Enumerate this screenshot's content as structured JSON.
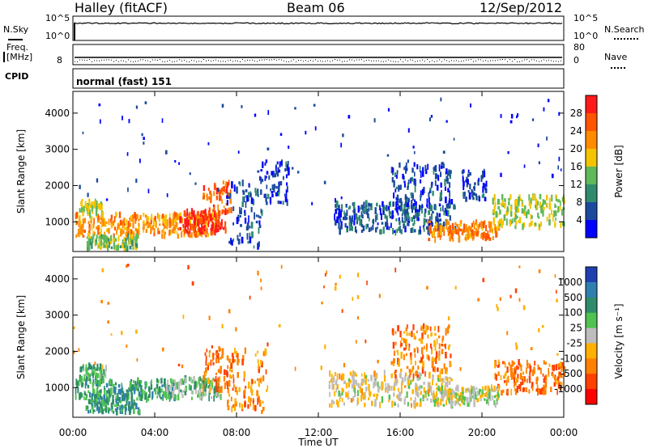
{
  "header": {
    "station": "Halley (fitACF)",
    "beam": "Beam 06",
    "date": "12/Sep/2012"
  },
  "noise_panel": {
    "left_label": "N.Sky",
    "right_label": "N.Search",
    "ticks_left": [
      "10^5",
      "10^0"
    ],
    "ticks_right": [
      "10^5",
      "10^0"
    ]
  },
  "freq_panel": {
    "left_label_line1": "Freq.",
    "left_label_line2": "[MHz]",
    "left_tick": "8",
    "right_label": "Nave",
    "right_ticks": [
      "80",
      "0"
    ]
  },
  "cpid": {
    "label": "CPID",
    "value": "normal (fast) 151"
  },
  "chart_data": [
    {
      "type": "heatmap",
      "name": "power",
      "ylabel": "Slant Range [km]",
      "yticks": [
        "4000",
        "3000",
        "2000",
        "1000"
      ],
      "ylim": [
        180,
        4600
      ],
      "xlim": [
        0,
        24
      ],
      "xticks": [
        "00:00",
        "04:00",
        "08:00",
        "12:00",
        "16:00",
        "20:00",
        "00:00"
      ],
      "colorbar": {
        "label": "Power [dB]",
        "ticks": [
          "28",
          "24",
          "20",
          "16",
          "12",
          "8",
          "4"
        ],
        "colors": [
          "#ff1a1a",
          "#ff5500",
          "#ff8c00",
          "#f5c400",
          "#5fb85a",
          "#2f8a6e",
          "#1b4a9c",
          "#0000ff"
        ]
      },
      "regions": [
        {
          "t0": 0.1,
          "t1": 7.0,
          "r0": 600,
          "r1": 1200,
          "level": 0.68
        },
        {
          "t0": 5.2,
          "t1": 7.5,
          "r0": 700,
          "r1": 1300,
          "level": 0.92
        },
        {
          "t0": 6.3,
          "t1": 7.7,
          "r0": 1100,
          "r1": 2100,
          "level": 0.8
        },
        {
          "t0": 0.3,
          "t1": 1.5,
          "r0": 1200,
          "r1": 1600,
          "level": 0.5
        },
        {
          "t0": 0.6,
          "t1": 3.2,
          "r0": 250,
          "r1": 600,
          "level": 0.45
        },
        {
          "t0": 7.5,
          "t1": 9.2,
          "r0": 300,
          "r1": 2100,
          "level": 0.18
        },
        {
          "t0": 9.0,
          "t1": 10.5,
          "r0": 1500,
          "r1": 2700,
          "level": 0.14
        },
        {
          "t0": 12.7,
          "t1": 18.7,
          "r0": 700,
          "r1": 1500,
          "level": 0.2
        },
        {
          "t0": 15.5,
          "t1": 18.5,
          "r0": 1300,
          "r1": 2600,
          "level": 0.17
        },
        {
          "t0": 17.3,
          "t1": 20.8,
          "r0": 500,
          "r1": 1000,
          "level": 0.72
        },
        {
          "t0": 19.0,
          "t1": 20.2,
          "r0": 1600,
          "r1": 2400,
          "level": 0.15
        },
        {
          "t0": 20.5,
          "t1": 24.0,
          "r0": 850,
          "r1": 1700,
          "level": 0.5
        },
        {
          "t0": 0.0,
          "t1": 24.0,
          "r0": 1500,
          "r1": 4400,
          "level": 0.12
        }
      ]
    },
    {
      "type": "heatmap",
      "name": "velocity",
      "ylabel": "Slant Range [km]",
      "yticks": [
        "4000",
        "3000",
        "2000",
        "1000"
      ],
      "ylim": [
        180,
        4600
      ],
      "xlim": [
        0,
        24
      ],
      "xticks": [
        "00:00",
        "04:00",
        "08:00",
        "12:00",
        "16:00",
        "20:00",
        "00:00"
      ],
      "xlabel": "Time UT",
      "colorbar": {
        "label": "Velocity [m s⁻¹]",
        "ticks": [
          "1000",
          "500",
          "100",
          "25",
          "-25",
          "-100",
          "-500",
          "-1000"
        ],
        "colors": [
          "#1f3fb0",
          "#2f7fb0",
          "#2e8c6a",
          "#4fc24f",
          "#bdbdbd",
          "#ffb000",
          "#ff8000",
          "#ff4000",
          "#ff0000"
        ]
      },
      "regions": [
        {
          "t0": 0.1,
          "t1": 5.0,
          "r0": 650,
          "r1": 1200,
          "level": 0.3
        },
        {
          "t0": 4.5,
          "t1": 7.2,
          "r0": 700,
          "r1": 1250,
          "level": 0.42
        },
        {
          "t0": 6.3,
          "t1": 7.8,
          "r0": 900,
          "r1": 2100,
          "level": 0.75
        },
        {
          "t0": 0.3,
          "t1": 1.6,
          "r0": 1200,
          "r1": 1600,
          "level": 0.35
        },
        {
          "t0": 0.6,
          "t1": 3.2,
          "r0": 300,
          "r1": 650,
          "level": 0.3
        },
        {
          "t0": 7.5,
          "t1": 9.5,
          "r0": 300,
          "r1": 2100,
          "level": 0.7
        },
        {
          "t0": 12.5,
          "t1": 18.5,
          "r0": 500,
          "r1": 1400,
          "level": 0.55
        },
        {
          "t0": 15.5,
          "t1": 18.5,
          "r0": 1300,
          "r1": 2700,
          "level": 0.72
        },
        {
          "t0": 17.5,
          "t1": 20.8,
          "r0": 500,
          "r1": 1000,
          "level": 0.5
        },
        {
          "t0": 20.5,
          "t1": 24.0,
          "r0": 850,
          "r1": 1700,
          "level": 0.75
        },
        {
          "t0": 0.0,
          "t1": 24.0,
          "r0": 1500,
          "r1": 4400,
          "level": 0.7
        }
      ]
    }
  ]
}
